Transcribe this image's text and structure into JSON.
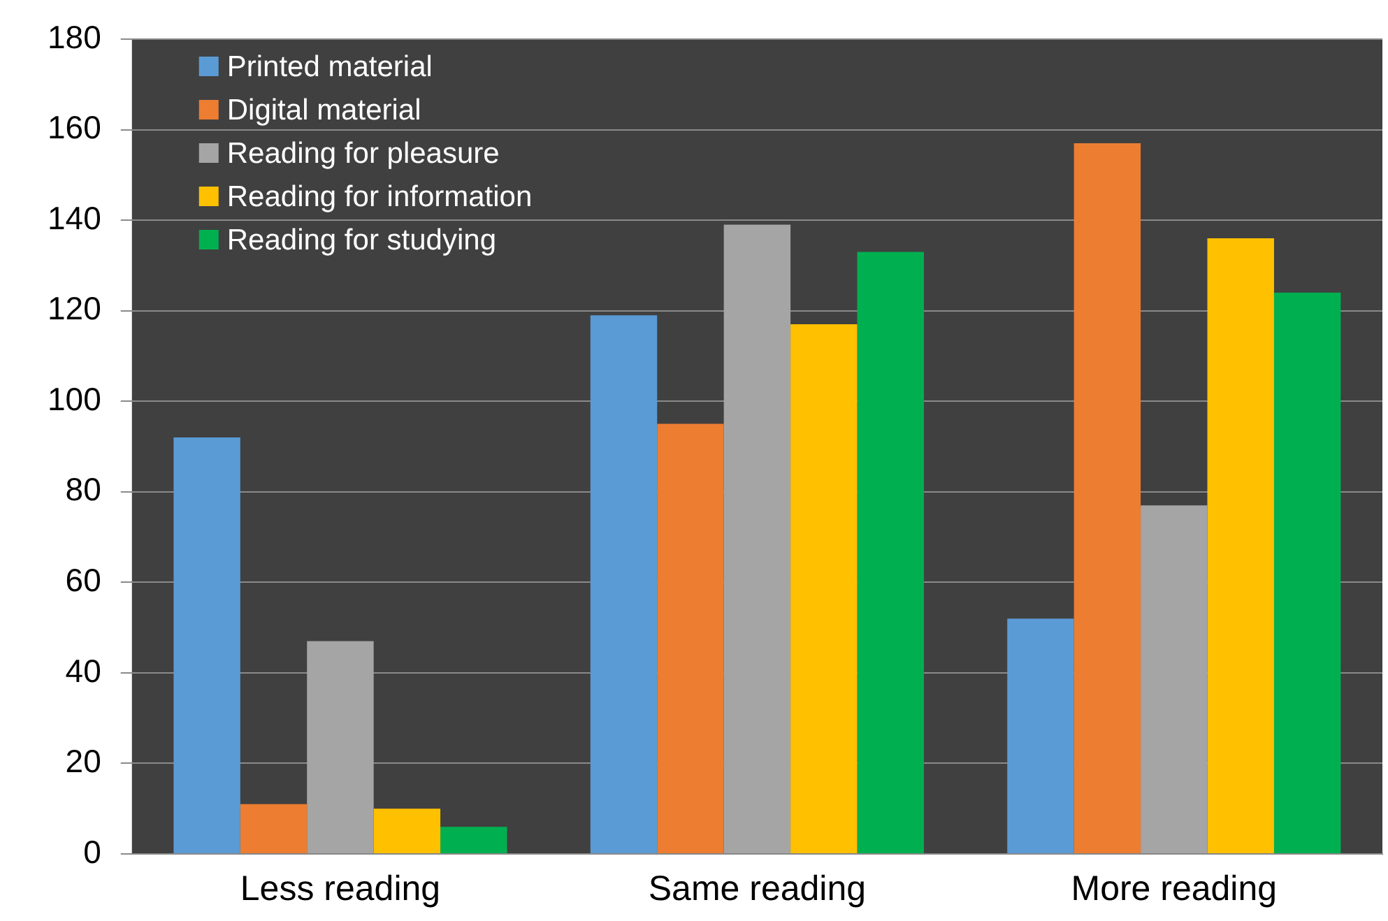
{
  "chart_data": {
    "type": "bar",
    "categories": [
      "Less reading",
      "Same reading",
      "More reading"
    ],
    "series": [
      {
        "name": "Printed material",
        "color": "#5b9bd5",
        "values": [
          92,
          119,
          52
        ]
      },
      {
        "name": "Digital material",
        "color": "#ed7d31",
        "values": [
          11,
          95,
          157
        ]
      },
      {
        "name": "Reading for pleasure",
        "color": "#a5a5a5",
        "values": [
          47,
          139,
          77
        ]
      },
      {
        "name": "Reading for information",
        "color": "#ffc000",
        "values": [
          10,
          117,
          136
        ]
      },
      {
        "name": "Reading for studying",
        "color": "#00b050",
        "values": [
          6,
          133,
          124
        ]
      }
    ],
    "ylim": [
      0,
      180
    ],
    "yticks": [
      0,
      20,
      40,
      60,
      80,
      100,
      120,
      140,
      160,
      180
    ],
    "grid": "y",
    "legend": "top left"
  }
}
